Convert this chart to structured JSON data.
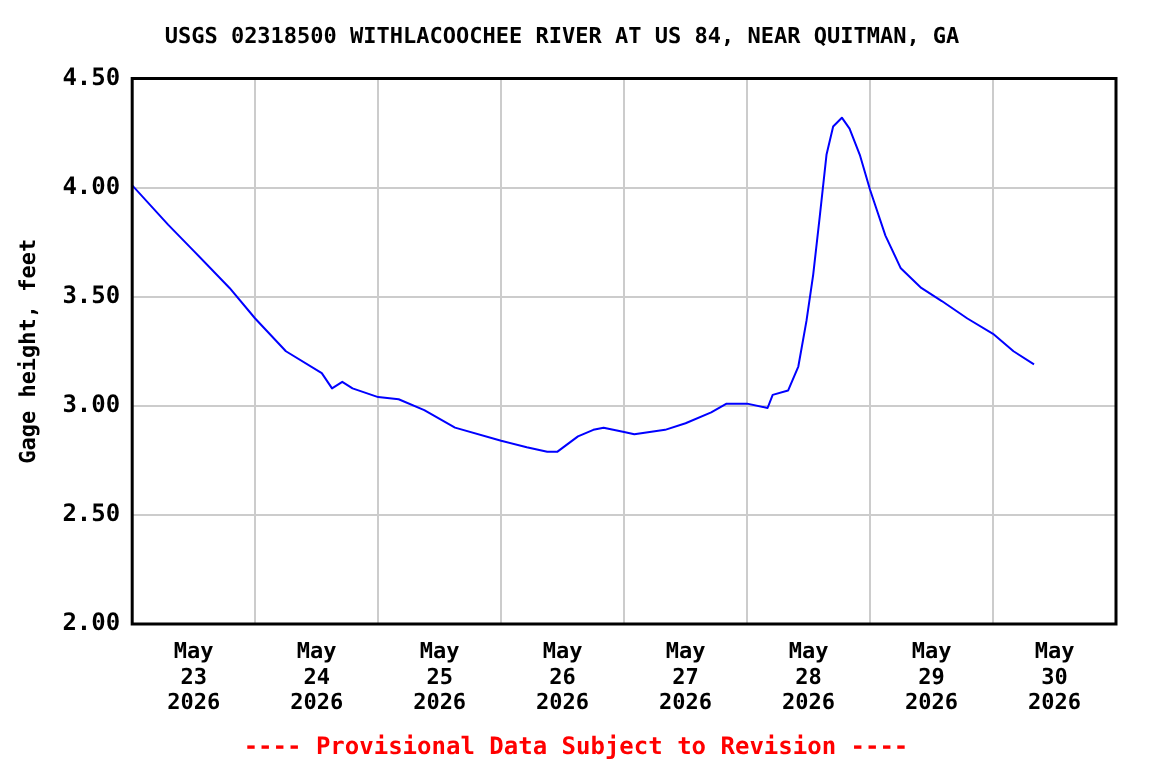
{
  "chart_data": {
    "type": "line",
    "title": "USGS 02318500 WITHLACOOCHEE RIVER AT US 84, NEAR QUITMAN, GA",
    "ylabel": "Gage height, feet",
    "annotations": [
      "---- Provisional Data Subject to Revision ----"
    ],
    "x": [
      "2026-05-23T00:00",
      "2026-05-23T07:00",
      "2026-05-23T12:00",
      "2026-05-23T19:00",
      "2026-05-24T00:00",
      "2026-05-24T06:00",
      "2026-05-24T13:00",
      "2026-05-24T15:00",
      "2026-05-24T17:00",
      "2026-05-24T19:00",
      "2026-05-25T00:00",
      "2026-05-25T04:00",
      "2026-05-25T09:00",
      "2026-05-25T15:00",
      "2026-05-26T00:00",
      "2026-05-26T05:00",
      "2026-05-26T09:00",
      "2026-05-26T11:00",
      "2026-05-26T15:00",
      "2026-05-26T18:00",
      "2026-05-26T20:00",
      "2026-05-27T00:00",
      "2026-05-27T02:00",
      "2026-05-27T08:00",
      "2026-05-27T12:00",
      "2026-05-27T17:00",
      "2026-05-27T20:00",
      "2026-05-28T00:00",
      "2026-05-28T04:00",
      "2026-05-28T05:00",
      "2026-05-28T08:00",
      "2026-05-28T10:00",
      "2026-05-28T11:36",
      "2026-05-28T12:54",
      "2026-05-28T14:12",
      "2026-05-28T15:30",
      "2026-05-28T16:48",
      "2026-05-28T18:30",
      "2026-05-28T20:00",
      "2026-05-28T22:00",
      "2026-05-29T00:00",
      "2026-05-29T03:00",
      "2026-05-29T06:00",
      "2026-05-29T10:00",
      "2026-05-29T14:00",
      "2026-05-29T19:00",
      "2026-05-30T00:00",
      "2026-05-30T04:00",
      "2026-05-30T08:00"
    ],
    "series": [
      {
        "color": "#0000ff",
        "values": [
          4.01,
          3.83,
          3.71,
          3.54,
          3.4,
          3.25,
          3.15,
          3.08,
          3.11,
          3.08,
          3.04,
          3.03,
          2.98,
          2.9,
          2.84,
          2.81,
          2.79,
          2.79,
          2.86,
          2.89,
          2.9,
          2.88,
          2.87,
          2.89,
          2.92,
          2.97,
          3.01,
          3.01,
          2.99,
          3.05,
          3.07,
          3.18,
          3.39,
          3.6,
          3.87,
          4.15,
          4.28,
          4.32,
          4.27,
          4.15,
          3.99,
          3.78,
          3.63,
          3.54,
          3.48,
          3.4,
          3.33,
          3.25,
          3.19
        ]
      }
    ],
    "xlim": [
      "2026-05-23T00:00",
      "2026-05-31T00:00"
    ],
    "xticks": [
      {
        "value": "2026-05-23T12:00",
        "label": "May\n23\n2026"
      },
      {
        "value": "2026-05-24T00:00",
        "label": null
      },
      {
        "value": "2026-05-24T12:00",
        "label": "May\n24\n2026"
      },
      {
        "value": "2026-05-25T00:00",
        "label": null
      },
      {
        "value": "2026-05-25T12:00",
        "label": "May\n25\n2026"
      },
      {
        "value": "2026-05-26T00:00",
        "label": null
      },
      {
        "value": "2026-05-26T12:00",
        "label": "May\n26\n2026"
      },
      {
        "value": "2026-05-27T00:00",
        "label": null
      },
      {
        "value": "2026-05-27T12:00",
        "label": "May\n27\n2026"
      },
      {
        "value": "2026-05-28T00:00",
        "label": null
      },
      {
        "value": "2026-05-28T12:00",
        "label": "May\n28\n2026"
      },
      {
        "value": "2026-05-29T00:00",
        "label": null
      },
      {
        "value": "2026-05-29T12:00",
        "label": "May\n29\n2026"
      },
      {
        "value": "2026-05-30T00:00",
        "label": null
      },
      {
        "value": "2026-05-30T12:00",
        "label": "May\n30\n2026"
      }
    ],
    "ylim": [
      2,
      4.5
    ],
    "yticks": [
      {
        "value": 2,
        "label": "2.00"
      },
      {
        "value": 2.5,
        "label": "2.50"
      },
      {
        "value": 3,
        "label": "3.00"
      },
      {
        "value": 3.5,
        "label": "3.50"
      },
      {
        "value": 4,
        "label": "4.00"
      },
      {
        "value": 4.5,
        "label": "4.50"
      }
    ],
    "grid": true,
    "legend": false,
    "marker": "none",
    "line_style": "solid"
  }
}
